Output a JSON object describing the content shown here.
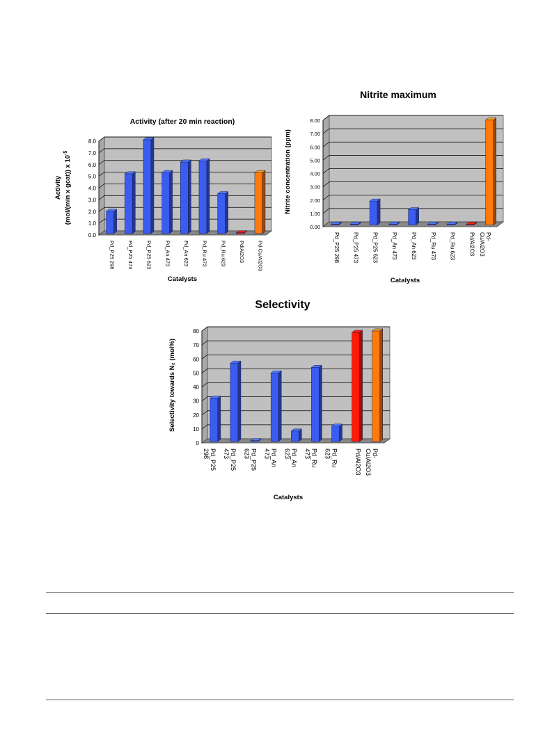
{
  "colors": {
    "blue": "#3a5cf0",
    "red": "#ff1a0a",
    "orange": "#ff7a0a",
    "plot_bg": "#c0c0c0",
    "floor": "#888888"
  },
  "chart_data": [
    {
      "type": "bar",
      "title": "Activity (after 20 min reaction)",
      "xlabel": "Catalysts",
      "ylabel_line1": "Activity",
      "ylabel_line2": "(mol/(min x gcat)) x 10",
      "ylabel_exp": "-5",
      "ylim": [
        0,
        8
      ],
      "yticks": [
        "0.0",
        "1.0",
        "2.0",
        "3.0",
        "4.0",
        "5.0",
        "6.0",
        "7.0",
        "8.0"
      ],
      "categories": [
        "Pd_P25 298",
        "Pd_P25 473",
        "Pd_P25 623",
        "Pd_An 473",
        "Pd_An 623",
        "Pd_Ru 473",
        "Pd_Ru 623",
        "Pd/Al2O3",
        "Pd-Cu/Al2O3"
      ],
      "values": [
        1.9,
        5.1,
        8.0,
        5.2,
        6.1,
        6.2,
        3.4,
        0.05,
        5.2
      ],
      "bar_colors": [
        "blue",
        "blue",
        "blue",
        "blue",
        "blue",
        "blue",
        "blue",
        "red",
        "orange"
      ],
      "grid": true
    },
    {
      "type": "bar",
      "title": "Nitrite maximum",
      "xlabel": "Catalysts",
      "ylabel": "Nitrite concentration (ppm)",
      "ylim": [
        0,
        8
      ],
      "yticks": [
        "0.00",
        "1.00",
        "2.00",
        "3.00",
        "4.00",
        "5.00",
        "6.00",
        "7.00",
        "8.00"
      ],
      "categories": [
        "Pd_P25 298",
        "Pd_P25 473",
        "Pd_P25 623",
        "Pd_An 473",
        "Pd_An 623",
        "Pd_Ru 473",
        "Pd_Ru 623",
        "Pd/Al2O3",
        "Pd-Cu/Al2O3"
      ],
      "values": [
        0.05,
        0.05,
        1.8,
        0.05,
        1.15,
        0.05,
        0.05,
        0.05,
        7.9
      ],
      "bar_colors": [
        "blue",
        "blue",
        "blue",
        "blue",
        "blue",
        "blue",
        "blue",
        "red",
        "orange"
      ],
      "grid": true
    },
    {
      "type": "bar",
      "title": "Selectivity",
      "xlabel": "Catalysts",
      "ylabel": "Selectivity towards N₂ (mol%)",
      "ylim": [
        0,
        80
      ],
      "yticks": [
        "0",
        "10",
        "20",
        "30",
        "40",
        "50",
        "60",
        "70",
        "80"
      ],
      "categories": [
        "Pd_P25 298",
        "Pd_P25 473",
        "Pd_P25 623",
        "Pd_An 473",
        "Pd_An 623",
        "Pd_Ru 473",
        "Pd_Ru 623",
        "Pd/Al2O3",
        "Pd-Cu/Al2O3"
      ],
      "values": [
        31,
        56,
        0.5,
        49,
        7.5,
        53,
        11,
        78,
        79
      ],
      "bar_colors": [
        "blue",
        "blue",
        "blue",
        "blue",
        "blue",
        "blue",
        "blue",
        "red",
        "orange"
      ],
      "grid": true
    }
  ]
}
